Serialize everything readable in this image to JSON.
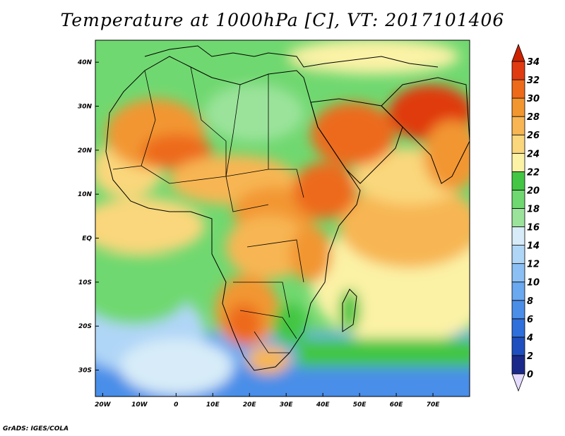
{
  "title": "Temperature at 1000hPa [C], VT: 2017101406",
  "credit": "GrADS: IGES/COLA",
  "map": {
    "lon_range": [
      -22,
      80
    ],
    "lat_range": [
      -36,
      45
    ],
    "x_ticks": [
      {
        "lon": -20,
        "label": "20W"
      },
      {
        "lon": -10,
        "label": "10W"
      },
      {
        "lon": 0,
        "label": "0"
      },
      {
        "lon": 10,
        "label": "10E"
      },
      {
        "lon": 20,
        "label": "20E"
      },
      {
        "lon": 30,
        "label": "30E"
      },
      {
        "lon": 40,
        "label": "40E"
      },
      {
        "lon": 50,
        "label": "50E"
      },
      {
        "lon": 60,
        "label": "60E"
      },
      {
        "lon": 70,
        "label": "70E"
      }
    ],
    "y_ticks": [
      {
        "lat": 40,
        "label": "40N"
      },
      {
        "lat": 30,
        "label": "30N"
      },
      {
        "lat": 20,
        "label": "20N"
      },
      {
        "lat": 10,
        "label": "10N"
      },
      {
        "lat": 0,
        "label": "EQ"
      },
      {
        "lat": -10,
        "label": "10S"
      },
      {
        "lat": -20,
        "label": "20S"
      },
      {
        "lat": -30,
        "label": "30S"
      }
    ]
  },
  "colorbar": {
    "levels": [
      0,
      2,
      4,
      6,
      8,
      10,
      12,
      14,
      16,
      18,
      20,
      22,
      24,
      26,
      28,
      30,
      32,
      34
    ],
    "colors": [
      "#1b2a8a",
      "#1f4fbf",
      "#2e6fdc",
      "#4a8ee8",
      "#6aa8ef",
      "#8cc0f4",
      "#b0d6f7",
      "#d7ecf8",
      "#9be39b",
      "#70d870",
      "#43c643",
      "#fbf2a6",
      "#fad77c",
      "#f7b653",
      "#f29630",
      "#ed6a1a",
      "#e03a10"
    ],
    "under_color": "#e6dcff",
    "over_color": "#cc2200"
  }
}
